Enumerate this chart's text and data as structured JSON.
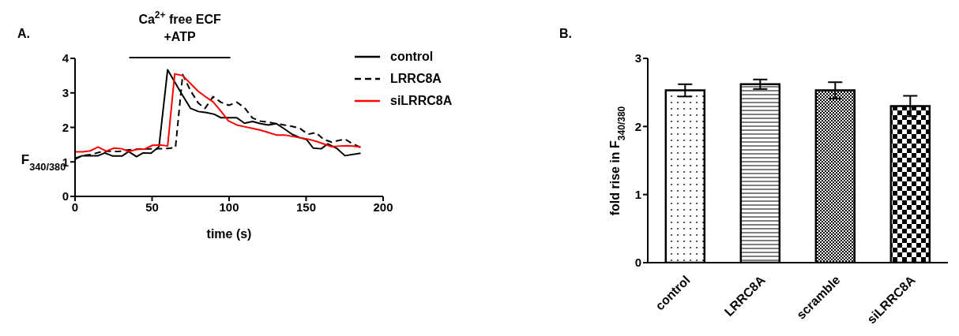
{
  "chart_data": [
    {
      "type": "line",
      "xlabel": "time (s)",
      "ylabel": "F$_{340/380}$",
      "xlim": [
        0,
        200
      ],
      "xticks": [
        0,
        50,
        100,
        150,
        200
      ],
      "ylim": [
        0,
        4
      ],
      "yticks": [
        0,
        1,
        2,
        3,
        4
      ],
      "legend": "top right",
      "marker": "none",
      "annotations": [
        "A.",
        "Ca$^{2+}$ free ECF\n+ATP"
      ],
      "series": [
        {
          "name": "control",
          "color": "#000000",
          "line_style": "solid",
          "x": [
            0,
            4.8,
            15,
            19.3,
            24.5,
            30.5,
            34.8,
            39.9,
            44.2,
            49.3,
            54.5,
            60.1,
            69,
            75,
            80.1,
            85.3,
            90.4,
            94.7,
            99.8,
            105,
            110,
            115.2,
            120.4,
            125.5,
            130.6,
            135.8,
            140.9,
            146,
            150.3,
            154.6,
            159.8,
            164,
            170,
            175.2,
            185.4
          ],
          "values": [
            1.11,
            1.18,
            1.18,
            1.26,
            1.17,
            1.17,
            1.3,
            1.15,
            1.26,
            1.25,
            1.44,
            3.67,
            2.99,
            2.55,
            2.46,
            2.43,
            2.38,
            2.28,
            2.28,
            2.28,
            2.12,
            2.17,
            2.11,
            2.07,
            2.11,
            1.96,
            1.8,
            1.7,
            1.65,
            1.4,
            1.38,
            1.52,
            1.39,
            1.18,
            1.25
          ]
        },
        {
          "name": "LRRC8A",
          "color": "#000000",
          "line_style": "dashed",
          "x": [
            0,
            4.8,
            9.9,
            15.9,
            21,
            27.9,
            34.8,
            43.3,
            53.6,
            60.4,
            65.2,
            69.9,
            75,
            80.1,
            84.4,
            89.6,
            94.7,
            99.8,
            105,
            110,
            115.2,
            120.4,
            125.5,
            130.6,
            135.8,
            140.9,
            146,
            151.2,
            156.3,
            161.5,
            166.6,
            170.9,
            175.2,
            180.3,
            185.4
          ],
          "values": [
            1.08,
            1.18,
            1.21,
            1.28,
            1.31,
            1.3,
            1.35,
            1.38,
            1.38,
            1.39,
            1.42,
            3.53,
            3.06,
            2.7,
            2.55,
            2.89,
            2.73,
            2.64,
            2.73,
            2.57,
            2.27,
            2.18,
            2.15,
            2.11,
            2.07,
            2.03,
            1.97,
            1.8,
            1.85,
            1.65,
            1.57,
            1.62,
            1.66,
            1.52,
            1.42
          ]
        },
        {
          "name": "siLRRC8A",
          "color": "#ff0000",
          "line_style": "solid",
          "x": [
            0,
            4.8,
            9.9,
            15,
            20.2,
            25.3,
            30.5,
            34.8,
            39.9,
            45,
            50.2,
            55.3,
            60.1,
            64.7,
            69.9,
            75,
            80.1,
            85.3,
            89.6,
            94.7,
            99.5,
            105,
            110,
            115.2,
            120.4,
            125.5,
            130.6,
            135.8,
            140.9,
            146,
            151.2,
            156.3,
            161.5,
            166.6,
            171.7,
            176.9,
            182,
            185.4
          ],
          "values": [
            1.29,
            1.29,
            1.32,
            1.43,
            1.31,
            1.4,
            1.38,
            1.3,
            1.36,
            1.37,
            1.48,
            1.49,
            1.46,
            3.55,
            3.5,
            3.27,
            3.04,
            2.87,
            2.74,
            2.47,
            2.19,
            2.07,
            2.02,
            1.97,
            1.92,
            1.85,
            1.78,
            1.78,
            1.74,
            1.7,
            1.66,
            1.6,
            1.52,
            1.44,
            1.46,
            1.47,
            1.45,
            1.43
          ]
        }
      ]
    },
    {
      "type": "bar",
      "ylabel": "fold rise in F$_{340/380}$",
      "categories": [
        "control",
        "LRRC8A",
        "scramble",
        "siLRRC8A"
      ],
      "values": [
        2.53,
        2.62,
        2.53,
        2.3
      ],
      "errors": [
        0.09,
        0.07,
        0.12,
        0.15
      ],
      "color": "#000000",
      "ylim": [
        0,
        3
      ],
      "yticks": [
        0,
        1,
        2,
        3
      ],
      "annotations": [
        "B."
      ]
    }
  ]
}
